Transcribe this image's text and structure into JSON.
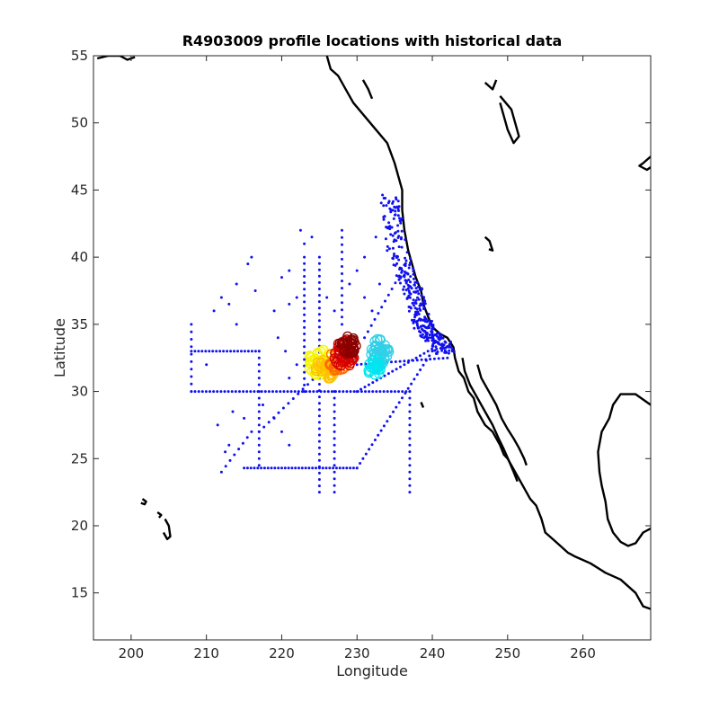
{
  "chart_data": {
    "type": "scatter",
    "title": "R4903009 profile locations with historical data",
    "xlabel": "Longitude",
    "ylabel": "Latitude",
    "xlim": [
      195,
      269
    ],
    "ylim": [
      11.5,
      55
    ],
    "xticks": [
      200,
      210,
      220,
      230,
      240,
      250,
      260
    ],
    "yticks": [
      15,
      20,
      25,
      30,
      35,
      40,
      45,
      50,
      55
    ],
    "grid": false,
    "legend": "none",
    "colors": {
      "historical": "#1010f0",
      "coast": "#000000",
      "profile_colormap": [
        "#f5f500",
        "#ffc000",
        "#ff6a00",
        "#d40000",
        "#8a0000",
        "#30d0e8",
        "#00e6f0"
      ]
    },
    "series": [
      {
        "role": "historical-profiles",
        "color": "#1010f0",
        "segments": [
          {
            "x0": 208,
            "y0": 30,
            "x1": 237,
            "y1": 30,
            "n": 60
          },
          {
            "x0": 208,
            "y0": 33,
            "x1": 217,
            "y1": 33,
            "n": 20
          },
          {
            "x0": 208,
            "y0": 30,
            "x1": 208,
            "y1": 35,
            "n": 10
          },
          {
            "x0": 217,
            "y0": 33,
            "x1": 217,
            "y1": 24.5,
            "n": 18
          },
          {
            "x0": 215,
            "y0": 24.3,
            "x1": 230,
            "y1": 24.3,
            "n": 34
          },
          {
            "x0": 225,
            "y0": 22.5,
            "x1": 225,
            "y1": 40,
            "n": 38
          },
          {
            "x0": 227,
            "y0": 22.5,
            "x1": 227,
            "y1": 30,
            "n": 16
          },
          {
            "x0": 223,
            "y0": 40,
            "x1": 223,
            "y1": 30,
            "n": 22
          },
          {
            "x0": 228,
            "y0": 42,
            "x1": 228,
            "y1": 35,
            "n": 14
          },
          {
            "x0": 230,
            "y0": 24.3,
            "x1": 240,
            "y1": 33,
            "n": 26
          },
          {
            "x0": 237,
            "y0": 30,
            "x1": 237,
            "y1": 22.5,
            "n": 16
          },
          {
            "x0": 230,
            "y0": 30,
            "x1": 241,
            "y1": 33.5,
            "n": 22
          },
          {
            "x0": 230,
            "y0": 32,
            "x1": 242,
            "y1": 32.5,
            "n": 22
          },
          {
            "x0": 217,
            "y0": 27,
            "x1": 228,
            "y1": 33,
            "n": 18
          },
          {
            "x0": 212,
            "y0": 24,
            "x1": 216,
            "y1": 27,
            "n": 8
          },
          {
            "x0": 231,
            "y0": 34,
            "x1": 236,
            "y1": 39,
            "n": 12
          }
        ],
        "coastal_band": [
          [
            235.5,
            44.5
          ],
          [
            236,
            43
          ],
          [
            236.5,
            41
          ],
          [
            237.5,
            39
          ],
          [
            238.5,
            38
          ],
          [
            239,
            37
          ],
          [
            239.5,
            36
          ],
          [
            240,
            35
          ],
          [
            240.5,
            34.5
          ],
          [
            241.5,
            34
          ],
          [
            242.5,
            33.5
          ],
          [
            243,
            32.8
          ]
        ],
        "scatter_points": [
          [
            222.5,
            42
          ],
          [
            223,
            41
          ],
          [
            224,
            41.5
          ],
          [
            221,
            39
          ],
          [
            220,
            38.5
          ],
          [
            219,
            36
          ],
          [
            221,
            36.5
          ],
          [
            222,
            37
          ],
          [
            219.5,
            34
          ],
          [
            220.5,
            33
          ],
          [
            222,
            32
          ],
          [
            221,
            31
          ],
          [
            216,
            40
          ],
          [
            215.5,
            39.5
          ],
          [
            214,
            38
          ],
          [
            212,
            37
          ],
          [
            211,
            36
          ],
          [
            213,
            36.5
          ],
          [
            210,
            32
          ],
          [
            214,
            35
          ],
          [
            216.5,
            37.5
          ],
          [
            211.5,
            27.5
          ],
          [
            213,
            26
          ],
          [
            212.5,
            25.5
          ],
          [
            215,
            28
          ],
          [
            217.5,
            29
          ],
          [
            219,
            28
          ],
          [
            220,
            27
          ],
          [
            221,
            26
          ],
          [
            213.5,
            28.5
          ],
          [
            226,
            37
          ],
          [
            227,
            36
          ],
          [
            229,
            38
          ],
          [
            230,
            39
          ],
          [
            231,
            37
          ],
          [
            232,
            36
          ],
          [
            233,
            38
          ],
          [
            234,
            40.5
          ],
          [
            231,
            40
          ],
          [
            232.5,
            41.5
          ],
          [
            229,
            34
          ],
          [
            228,
            33.5
          ]
        ]
      },
      {
        "role": "float-profiles",
        "clusters": [
          {
            "color": "#f5f500",
            "cx": 225.0,
            "cy": 32.2,
            "rx": 1.6,
            "ry": 1.0,
            "n": 40
          },
          {
            "color": "#ffc000",
            "cx": 225.8,
            "cy": 31.7,
            "rx": 1.4,
            "ry": 0.8,
            "n": 30
          },
          {
            "color": "#ff6a00",
            "cx": 227.5,
            "cy": 32.3,
            "rx": 1.3,
            "ry": 0.8,
            "n": 25
          },
          {
            "color": "#d40000",
            "cx": 228.3,
            "cy": 32.8,
            "rx": 1.4,
            "ry": 1.0,
            "n": 40
          },
          {
            "color": "#8a0000",
            "cx": 228.8,
            "cy": 33.4,
            "rx": 1.2,
            "ry": 0.7,
            "n": 30
          },
          {
            "color": "#30d0e8",
            "cx": 233.0,
            "cy": 32.8,
            "rx": 1.3,
            "ry": 1.2,
            "n": 45
          },
          {
            "color": "#00e6f0",
            "cx": 232.3,
            "cy": 31.8,
            "rx": 0.9,
            "ry": 0.7,
            "n": 20
          }
        ]
      }
    ],
    "coastlines": [
      [
        [
          226,
          55
        ],
        [
          226.5,
          54
        ],
        [
          227.5,
          53.5
        ],
        [
          228.5,
          52.5
        ],
        [
          229.5,
          51.5
        ],
        [
          231,
          50.5
        ],
        [
          232.5,
          49.5
        ],
        [
          234,
          48.5
        ],
        [
          235,
          47
        ],
        [
          235.5,
          46
        ],
        [
          236,
          45
        ],
        [
          236,
          43.5
        ],
        [
          236.3,
          42
        ],
        [
          236.8,
          40.5
        ],
        [
          237.3,
          39.5
        ],
        [
          237.8,
          38.5
        ],
        [
          238.5,
          37.5
        ],
        [
          238.8,
          36.5
        ],
        [
          239.5,
          35.5
        ],
        [
          240,
          34.8
        ],
        [
          241,
          34.3
        ],
        [
          242,
          34
        ],
        [
          242.8,
          33.3
        ],
        [
          243,
          32.5
        ],
        [
          243.5,
          31.5
        ],
        [
          244.2,
          31
        ],
        [
          244.8,
          30
        ],
        [
          245.5,
          29.5
        ],
        [
          246,
          28.5
        ],
        [
          247,
          27.5
        ],
        [
          248,
          27
        ],
        [
          249,
          26
        ],
        [
          249.5,
          25.3
        ],
        [
          250,
          25
        ],
        [
          250.5,
          24.5
        ],
        [
          251,
          24
        ],
        [
          252,
          23
        ],
        [
          253,
          22
        ],
        [
          253.8,
          21.5
        ],
        [
          254.5,
          20.5
        ],
        [
          255,
          19.5
        ],
        [
          256,
          19
        ],
        [
          257,
          18.5
        ],
        [
          258,
          18
        ],
        [
          259,
          17.7
        ],
        [
          261,
          17.2
        ],
        [
          263,
          16.5
        ],
        [
          265,
          16
        ],
        [
          267,
          15
        ],
        [
          268,
          14
        ],
        [
          269,
          13.8
        ]
      ],
      [
        [
          269,
          29
        ],
        [
          267,
          29.8
        ],
        [
          265,
          29.8
        ],
        [
          264,
          29
        ],
        [
          263.5,
          28
        ],
        [
          262.5,
          27
        ],
        [
          262,
          25.5
        ],
        [
          262.2,
          24
        ],
        [
          262.5,
          23
        ],
        [
          263,
          21.8
        ],
        [
          263.3,
          20.5
        ],
        [
          264,
          19.5
        ],
        [
          265,
          18.8
        ],
        [
          266,
          18.5
        ],
        [
          267,
          18.7
        ],
        [
          268,
          19.5
        ],
        [
          269,
          19.8
        ]
      ],
      [
        [
          246,
          32
        ],
        [
          246.5,
          31
        ],
        [
          247.5,
          30
        ],
        [
          248.5,
          29
        ],
        [
          249.2,
          28
        ],
        [
          250,
          27.2
        ],
        [
          250.8,
          26.5
        ],
        [
          251.5,
          25.8
        ],
        [
          252.2,
          25
        ],
        [
          252.5,
          24.5
        ]
      ],
      [
        [
          244,
          32.5
        ],
        [
          244.3,
          31.5
        ],
        [
          245,
          30.5
        ],
        [
          246,
          29.5
        ],
        [
          247,
          28.5
        ],
        [
          248,
          27.5
        ],
        [
          248.8,
          26.5
        ],
        [
          249.5,
          25.7
        ],
        [
          250.2,
          24.8
        ],
        [
          250.8,
          24
        ],
        [
          251.3,
          23.3
        ]
      ],
      [
        [
          195.5,
          54.8
        ],
        [
          197,
          55
        ],
        [
          198.5,
          55
        ],
        [
          199.5,
          54.7
        ],
        [
          200.5,
          54.9
        ]
      ],
      [
        [
          249,
          52
        ],
        [
          250.5,
          51
        ],
        [
          251,
          50
        ],
        [
          251.5,
          49
        ],
        [
          250.8,
          48.5
        ],
        [
          250,
          49.5
        ],
        [
          249.5,
          50.5
        ],
        [
          249,
          51.5
        ]
      ],
      [
        [
          247,
          53
        ],
        [
          248,
          52.5
        ],
        [
          248.5,
          53.2
        ]
      ],
      [
        [
          269,
          47.5
        ],
        [
          268,
          47
        ],
        [
          267.5,
          46.8
        ],
        [
          268.5,
          46.5
        ],
        [
          269,
          46.7
        ]
      ],
      [
        [
          247,
          41.5
        ],
        [
          247.6,
          41.2
        ],
        [
          248,
          40.5
        ],
        [
          247.5,
          40.6
        ]
      ],
      [
        [
          204.5,
          20.5
        ],
        [
          205,
          20
        ],
        [
          205.2,
          19.2
        ],
        [
          204.8,
          19
        ],
        [
          204.3,
          19.5
        ]
      ],
      [
        [
          203.5,
          21
        ],
        [
          204,
          20.8
        ],
        [
          203.7,
          20.6
        ]
      ],
      [
        [
          201.5,
          22
        ],
        [
          202,
          21.8
        ],
        [
          201.8,
          21.6
        ],
        [
          201.3,
          21.7
        ]
      ],
      [
        [
          238.5,
          29.2
        ],
        [
          238.8,
          28.8
        ]
      ],
      [
        [
          230.8,
          53.2
        ],
        [
          231.5,
          52.5
        ],
        [
          232,
          51.8
        ]
      ]
    ]
  }
}
